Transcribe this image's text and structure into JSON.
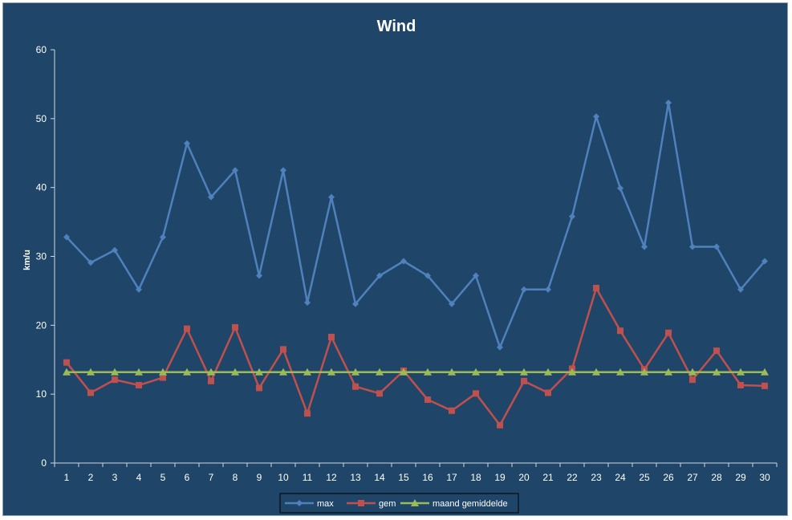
{
  "chart_data": {
    "type": "line",
    "title": "Wind",
    "xlabel": "",
    "ylabel": "km/u",
    "ylim": [
      0,
      60
    ],
    "yticks": [
      0,
      10,
      20,
      30,
      40,
      50,
      60
    ],
    "categories": [
      "1",
      "2",
      "3",
      "4",
      "5",
      "6",
      "7",
      "8",
      "9",
      "10",
      "11",
      "12",
      "13",
      "14",
      "15",
      "16",
      "17",
      "18",
      "19",
      "20",
      "21",
      "22",
      "23",
      "24",
      "25",
      "26",
      "27",
      "28",
      "29",
      "30"
    ],
    "grid": false,
    "legend_position": "bottom",
    "series": [
      {
        "name": "max",
        "color": "#4f81bd",
        "marker": "diamond",
        "values": [
          32.8,
          29.1,
          30.9,
          25.2,
          32.8,
          46.4,
          38.6,
          42.5,
          27.2,
          42.5,
          23.3,
          38.6,
          23.1,
          27.2,
          29.3,
          27.2,
          23.1,
          27.2,
          16.8,
          25.2,
          25.2,
          35.8,
          50.3,
          39.9,
          31.4,
          52.3,
          31.4,
          31.4,
          25.2,
          29.3
        ]
      },
      {
        "name": "gem",
        "color": "#c0504d",
        "marker": "square",
        "values": [
          14.6,
          10.2,
          12.1,
          11.3,
          12.4,
          19.5,
          11.9,
          19.7,
          10.9,
          16.5,
          7.2,
          18.3,
          11.1,
          10.1,
          13.4,
          9.2,
          7.6,
          10.1,
          5.5,
          11.9,
          10.2,
          13.7,
          25.4,
          19.2,
          13.6,
          18.9,
          12.1,
          16.3,
          11.3,
          11.2
        ]
      },
      {
        "name": "maand gemiddelde",
        "color": "#9bbb59",
        "marker": "triangle",
        "values": [
          13.2,
          13.2,
          13.2,
          13.2,
          13.2,
          13.2,
          13.2,
          13.2,
          13.2,
          13.2,
          13.2,
          13.2,
          13.2,
          13.2,
          13.2,
          13.2,
          13.2,
          13.2,
          13.2,
          13.2,
          13.2,
          13.2,
          13.2,
          13.2,
          13.2,
          13.2,
          13.2,
          13.2,
          13.2,
          13.2
        ]
      }
    ]
  }
}
